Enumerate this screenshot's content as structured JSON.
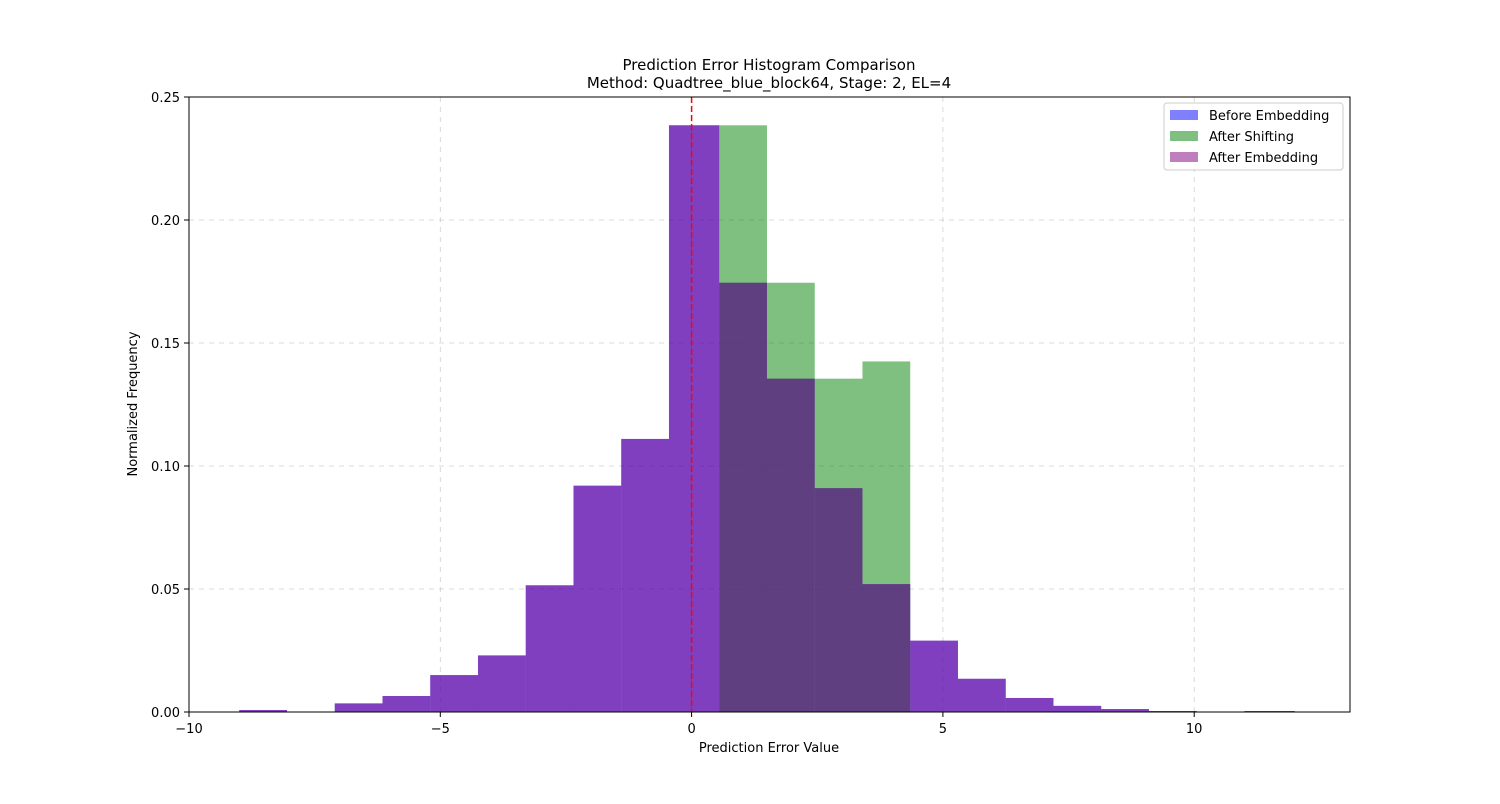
{
  "chart_data": {
    "type": "bar",
    "title_line1": "Prediction Error Histogram Comparison",
    "title_line2": "Method: Quadtree_blue_block64, Stage: 2, EL=4",
    "xlabel": "Prediction Error Value",
    "ylabel": "Normalized Frequency",
    "xlim": [
      -10,
      13.1
    ],
    "ylim": [
      0,
      0.25
    ],
    "xticks": [
      -10,
      -5,
      0,
      5,
      10
    ],
    "xtick_labels": [
      "−10",
      "−5",
      "0",
      "5",
      "10"
    ],
    "yticks": [
      0.0,
      0.05,
      0.1,
      0.15,
      0.2,
      0.25
    ],
    "ytick_labels": [
      "0.00",
      "0.05",
      "0.10",
      "0.15",
      "0.20",
      "0.25"
    ],
    "grid": true,
    "legend_position": "top-right",
    "reference_line": {
      "x": 0,
      "color": "#ff0000",
      "style": "dashed"
    },
    "series": [
      {
        "name": "Before Embedding",
        "color": "#0000ff",
        "alpha": 0.5,
        "bins": [
          {
            "x0": -9.0,
            "x1": -8.05,
            "value": 0.0008
          },
          {
            "x0": -8.05,
            "x1": -7.1,
            "value": 0.0
          },
          {
            "x0": -7.1,
            "x1": -6.15,
            "value": 0.0035
          },
          {
            "x0": -6.15,
            "x1": -5.2,
            "value": 0.0065
          },
          {
            "x0": -5.2,
            "x1": -4.25,
            "value": 0.015
          },
          {
            "x0": -4.25,
            "x1": -3.3,
            "value": 0.023
          },
          {
            "x0": -3.3,
            "x1": -2.35,
            "value": 0.0515
          },
          {
            "x0": -2.35,
            "x1": -1.4,
            "value": 0.092
          },
          {
            "x0": -1.4,
            "x1": -0.45,
            "value": 0.111
          },
          {
            "x0": -0.45,
            "x1": 0.55,
            "value": 0.2385
          },
          {
            "x0": 0.55,
            "x1": 1.5,
            "value": 0.1745
          },
          {
            "x0": 1.5,
            "x1": 2.45,
            "value": 0.1355
          },
          {
            "x0": 2.45,
            "x1": 3.4,
            "value": 0.091
          },
          {
            "x0": 3.4,
            "x1": 4.35,
            "value": 0.052
          },
          {
            "x0": 4.35,
            "x1": 5.3,
            "value": 0.029
          },
          {
            "x0": 5.3,
            "x1": 6.25,
            "value": 0.0135
          },
          {
            "x0": 6.25,
            "x1": 7.2,
            "value": 0.0057
          },
          {
            "x0": 7.2,
            "x1": 8.15,
            "value": 0.0025
          },
          {
            "x0": 8.15,
            "x1": 9.1,
            "value": 0.0012
          },
          {
            "x0": 9.1,
            "x1": 10.05,
            "value": 0.0004
          },
          {
            "x0": 10.05,
            "x1": 11.0,
            "value": 0.0
          },
          {
            "x0": 11.0,
            "x1": 12.0,
            "value": 0.0004
          }
        ]
      },
      {
        "name": "After Shifting",
        "color": "#008000",
        "alpha": 0.5,
        "bins": [
          {
            "x0": 0.55,
            "x1": 1.5,
            "value": 0.2385
          },
          {
            "x0": 1.5,
            "x1": 2.45,
            "value": 0.1745
          },
          {
            "x0": 2.45,
            "x1": 3.4,
            "value": 0.1355
          },
          {
            "x0": 3.4,
            "x1": 4.35,
            "value": 0.1425
          }
        ]
      },
      {
        "name": "After Embedding",
        "color": "#800080",
        "alpha": 0.5,
        "bins": [
          {
            "x0": -9.0,
            "x1": -8.05,
            "value": 0.0008
          },
          {
            "x0": -8.05,
            "x1": -7.1,
            "value": 0.0
          },
          {
            "x0": -7.1,
            "x1": -6.15,
            "value": 0.0035
          },
          {
            "x0": -6.15,
            "x1": -5.2,
            "value": 0.0065
          },
          {
            "x0": -5.2,
            "x1": -4.25,
            "value": 0.015
          },
          {
            "x0": -4.25,
            "x1": -3.3,
            "value": 0.023
          },
          {
            "x0": -3.3,
            "x1": -2.35,
            "value": 0.0515
          },
          {
            "x0": -2.35,
            "x1": -1.4,
            "value": 0.092
          },
          {
            "x0": -1.4,
            "x1": -0.45,
            "value": 0.111
          },
          {
            "x0": -0.45,
            "x1": 0.55,
            "value": 0.2385
          },
          {
            "x0": 0.55,
            "x1": 1.5,
            "value": 0.1745
          },
          {
            "x0": 1.5,
            "x1": 2.45,
            "value": 0.1355
          },
          {
            "x0": 2.45,
            "x1": 3.4,
            "value": 0.091
          },
          {
            "x0": 3.4,
            "x1": 4.35,
            "value": 0.052
          },
          {
            "x0": 4.35,
            "x1": 5.3,
            "value": 0.029
          },
          {
            "x0": 5.3,
            "x1": 6.25,
            "value": 0.0135
          },
          {
            "x0": 6.25,
            "x1": 7.2,
            "value": 0.0057
          },
          {
            "x0": 7.2,
            "x1": 8.15,
            "value": 0.0025
          },
          {
            "x0": 8.15,
            "x1": 9.1,
            "value": 0.0012
          },
          {
            "x0": 9.1,
            "x1": 10.05,
            "value": 0.0004
          },
          {
            "x0": 10.05,
            "x1": 11.0,
            "value": 0.0
          },
          {
            "x0": 11.0,
            "x1": 12.0,
            "value": 0.0004
          }
        ]
      }
    ]
  }
}
